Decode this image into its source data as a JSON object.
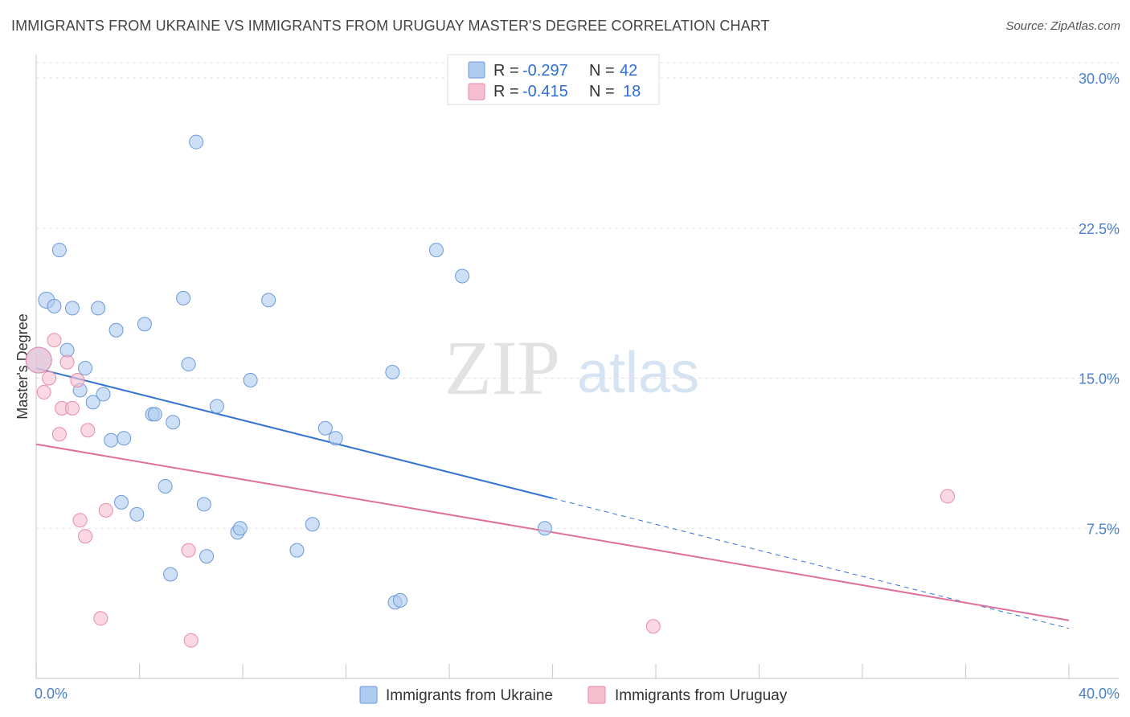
{
  "title": "IMMIGRANTS FROM UKRAINE VS IMMIGRANTS FROM URUGUAY MASTER'S DEGREE CORRELATION CHART",
  "source": "Source: ZipAtlas.com",
  "watermark": {
    "zip": "ZIP",
    "atlas": "atlas"
  },
  "colors": {
    "ukraine_fill": "#aecbf0",
    "ukraine_stroke": "#6c9ad8",
    "ukraine_line": "#3575d0",
    "uruguay_fill": "#f6bfd0",
    "uruguay_stroke": "#e68aa7",
    "uruguay_line": "#e0709a"
  },
  "legend_box": {
    "rows": [
      {
        "r_label": "R =",
        "r_value": "-0.297",
        "n_label": "N =",
        "n_value": "42"
      },
      {
        "r_label": "R =",
        "r_value": "-0.415",
        "n_label": "N =",
        "n_value": "18"
      }
    ]
  },
  "chart_data": {
    "type": "scatter",
    "xlabel": "",
    "ylabel": "Master's Degree",
    "xlim": [
      0,
      40
    ],
    "ylim": [
      0,
      30
    ],
    "y_ticks": [
      7.5,
      15.0,
      22.5,
      30.0
    ],
    "y_tick_labels": [
      "7.5%",
      "15.0%",
      "22.5%",
      "30.0%"
    ],
    "x_tick_labels": {
      "left": "0.0%",
      "right": "40.0%"
    },
    "legend": [
      "Immigrants from Ukraine",
      "Immigrants from Uruguay"
    ],
    "series": [
      {
        "name": "Immigrants from Ukraine",
        "points": [
          {
            "x": 0.1,
            "y": 15.9
          },
          {
            "x": 0.4,
            "y": 18.9
          },
          {
            "x": 0.7,
            "y": 18.6
          },
          {
            "x": 0.9,
            "y": 21.4
          },
          {
            "x": 1.2,
            "y": 16.4
          },
          {
            "x": 1.4,
            "y": 18.5
          },
          {
            "x": 1.7,
            "y": 14.4
          },
          {
            "x": 1.9,
            "y": 15.5
          },
          {
            "x": 2.2,
            "y": 13.8
          },
          {
            "x": 2.4,
            "y": 18.5
          },
          {
            "x": 2.6,
            "y": 14.2
          },
          {
            "x": 2.9,
            "y": 11.9
          },
          {
            "x": 3.1,
            "y": 17.4
          },
          {
            "x": 3.4,
            "y": 12.0
          },
          {
            "x": 3.3,
            "y": 8.8
          },
          {
            "x": 3.9,
            "y": 8.2
          },
          {
            "x": 4.2,
            "y": 17.7
          },
          {
            "x": 4.5,
            "y": 13.2
          },
          {
            "x": 4.6,
            "y": 13.2
          },
          {
            "x": 5.0,
            "y": 9.6
          },
          {
            "x": 5.2,
            "y": 5.2
          },
          {
            "x": 5.3,
            "y": 12.8
          },
          {
            "x": 5.7,
            "y": 19.0
          },
          {
            "x": 5.9,
            "y": 15.7
          },
          {
            "x": 6.2,
            "y": 26.8
          },
          {
            "x": 6.5,
            "y": 8.7
          },
          {
            "x": 6.6,
            "y": 6.1
          },
          {
            "x": 7.0,
            "y": 13.6
          },
          {
            "x": 7.8,
            "y": 7.3
          },
          {
            "x": 7.9,
            "y": 7.5
          },
          {
            "x": 8.3,
            "y": 14.9
          },
          {
            "x": 9.0,
            "y": 18.9
          },
          {
            "x": 10.1,
            "y": 6.4
          },
          {
            "x": 10.7,
            "y": 7.7
          },
          {
            "x": 11.2,
            "y": 12.5
          },
          {
            "x": 11.6,
            "y": 12.0
          },
          {
            "x": 13.8,
            "y": 15.3
          },
          {
            "x": 13.9,
            "y": 3.8
          },
          {
            "x": 14.1,
            "y": 3.9
          },
          {
            "x": 15.5,
            "y": 21.4
          },
          {
            "x": 16.5,
            "y": 20.1
          },
          {
            "x": 19.7,
            "y": 7.5
          }
        ],
        "trend": {
          "x1": 0,
          "y1": 15.5,
          "x2": 20.0,
          "y2": 9.0,
          "dash_to_x": 40,
          "dash_to_y": 2.5
        }
      },
      {
        "name": "Immigrants from Uruguay",
        "points": [
          {
            "x": 0.1,
            "y": 15.9
          },
          {
            "x": 0.3,
            "y": 14.3
          },
          {
            "x": 0.5,
            "y": 15.0
          },
          {
            "x": 0.7,
            "y": 16.9
          },
          {
            "x": 0.9,
            "y": 12.2
          },
          {
            "x": 1.0,
            "y": 13.5
          },
          {
            "x": 1.2,
            "y": 15.8
          },
          {
            "x": 1.4,
            "y": 13.5
          },
          {
            "x": 1.6,
            "y": 14.9
          },
          {
            "x": 1.7,
            "y": 7.9
          },
          {
            "x": 1.9,
            "y": 7.1
          },
          {
            "x": 2.0,
            "y": 12.4
          },
          {
            "x": 2.5,
            "y": 3.0
          },
          {
            "x": 2.7,
            "y": 8.4
          },
          {
            "x": 5.9,
            "y": 6.4
          },
          {
            "x": 6.0,
            "y": 1.9
          },
          {
            "x": 23.9,
            "y": 2.6
          },
          {
            "x": 35.3,
            "y": 9.1
          }
        ],
        "trend": {
          "x1": 0,
          "y1": 11.7,
          "x2": 40,
          "y2": 2.9
        }
      }
    ]
  }
}
